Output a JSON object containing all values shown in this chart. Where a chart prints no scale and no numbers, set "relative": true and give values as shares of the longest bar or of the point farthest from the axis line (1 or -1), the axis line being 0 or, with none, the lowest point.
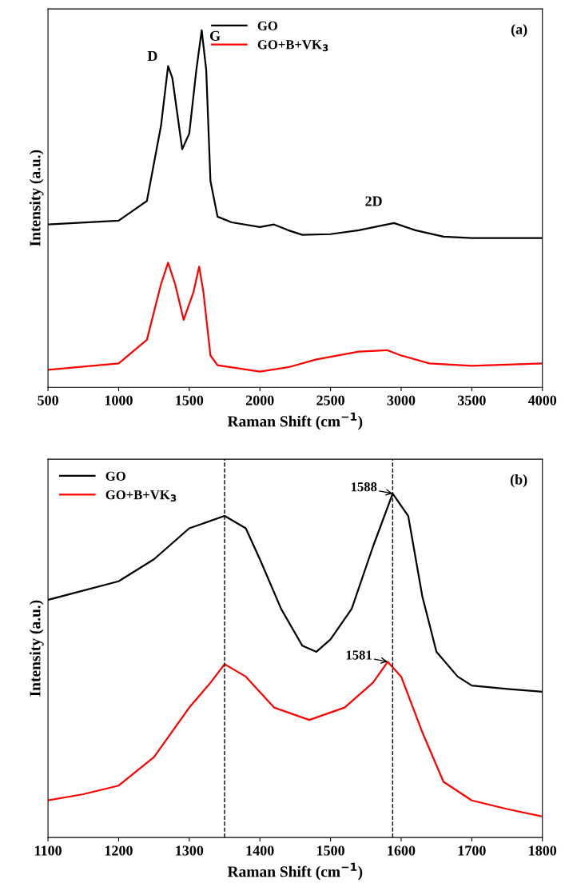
{
  "chart_data": [
    {
      "type": "line",
      "title": "(a)",
      "xlabel": "Raman Shift (cm$^{−1}$)",
      "ylabel": "Intensity (a.u.)",
      "relative": true,
      "xlim": [
        500,
        4000
      ],
      "xticks": [
        500,
        1000,
        1500,
        2000,
        2500,
        3000,
        3500,
        4000
      ],
      "legend": "top",
      "grid": false,
      "series": [
        {
          "name": "GO",
          "color": "#000000",
          "x": [
            500,
            1000,
            1200,
            1300,
            1350,
            1380,
            1450,
            1500,
            1550,
            1588,
            1620,
            1650,
            1700,
            1800,
            2000,
            2100,
            2200,
            2300,
            2500,
            2700,
            2900,
            2950,
            3100,
            3300,
            3500,
            4000
          ],
          "values": [
            0.456,
            0.467,
            0.522,
            0.733,
            0.9,
            0.867,
            0.667,
            0.711,
            0.889,
            1.0,
            0.889,
            0.578,
            0.478,
            0.462,
            0.449,
            0.456,
            0.44,
            0.427,
            0.429,
            0.44,
            0.456,
            0.46,
            0.44,
            0.422,
            0.418,
            0.418
          ]
        },
        {
          "name": "GO+B+VK$_{3}$",
          "color": "#ff0000",
          "x": [
            500,
            1000,
            1200,
            1300,
            1350,
            1400,
            1460,
            1530,
            1570,
            1600,
            1650,
            1700,
            2000,
            2200,
            2400,
            2700,
            2900,
            3000,
            3200,
            3500,
            4000
          ],
          "values": [
            0.049,
            0.067,
            0.133,
            0.289,
            0.349,
            0.289,
            0.189,
            0.267,
            0.338,
            0.267,
            0.089,
            0.062,
            0.044,
            0.056,
            0.078,
            0.1,
            0.104,
            0.089,
            0.067,
            0.06,
            0.067
          ]
        }
      ],
      "annotations": [
        {
          "text": "D",
          "x": 1350,
          "y": 0.9
        },
        {
          "text": "G",
          "x": 1588,
          "y": 1.0
        },
        {
          "text": "2D",
          "x": 2900,
          "y": 0.456
        }
      ]
    },
    {
      "type": "line",
      "title": "(b)",
      "xlabel": "Raman Shift (cm$^{−1}$)",
      "ylabel": "Intensity (a.u.)",
      "relative": true,
      "xlim": [
        1100,
        1800
      ],
      "xticks": [
        1100,
        1200,
        1300,
        1400,
        1500,
        1600,
        1700,
        1800
      ],
      "legend": "top left",
      "grid": false,
      "series": [
        {
          "name": "GO",
          "color": "#000000",
          "x": [
            1100,
            1200,
            1250,
            1280,
            1300,
            1350,
            1380,
            1400,
            1430,
            1460,
            1480,
            1500,
            1530,
            1560,
            1588,
            1610,
            1630,
            1650,
            1680,
            1700,
            1750,
            1800
          ],
          "values": [
            0.691,
            0.745,
            0.809,
            0.863,
            0.899,
            0.935,
            0.899,
            0.809,
            0.665,
            0.558,
            0.54,
            0.576,
            0.665,
            0.845,
            1.0,
            0.935,
            0.701,
            0.54,
            0.468,
            0.442,
            0.432,
            0.424
          ]
        },
        {
          "name": "GO+B+VK$_{3}$",
          "color": "#ff0000",
          "x": [
            1100,
            1150,
            1200,
            1250,
            1300,
            1330,
            1350,
            1380,
            1420,
            1470,
            1520,
            1560,
            1581,
            1600,
            1630,
            1660,
            1700,
            1750,
            1800
          ],
          "values": [
            0.108,
            0.126,
            0.151,
            0.234,
            0.378,
            0.45,
            0.504,
            0.468,
            0.378,
            0.342,
            0.378,
            0.45,
            0.511,
            0.468,
            0.306,
            0.162,
            0.108,
            0.083,
            0.061
          ]
        }
      ],
      "ref_lines": [
        {
          "axis": "x",
          "value": 1350,
          "color": "#000000",
          "line_style": "dashed"
        },
        {
          "axis": "x",
          "value": 1588,
          "color": "#000000",
          "line_style": "dashed"
        }
      ],
      "annotations": [
        {
          "text": "1588",
          "x": 1588,
          "y": 1.0
        },
        {
          "text": "1581",
          "x": 1581,
          "y": 0.511
        }
      ]
    }
  ]
}
